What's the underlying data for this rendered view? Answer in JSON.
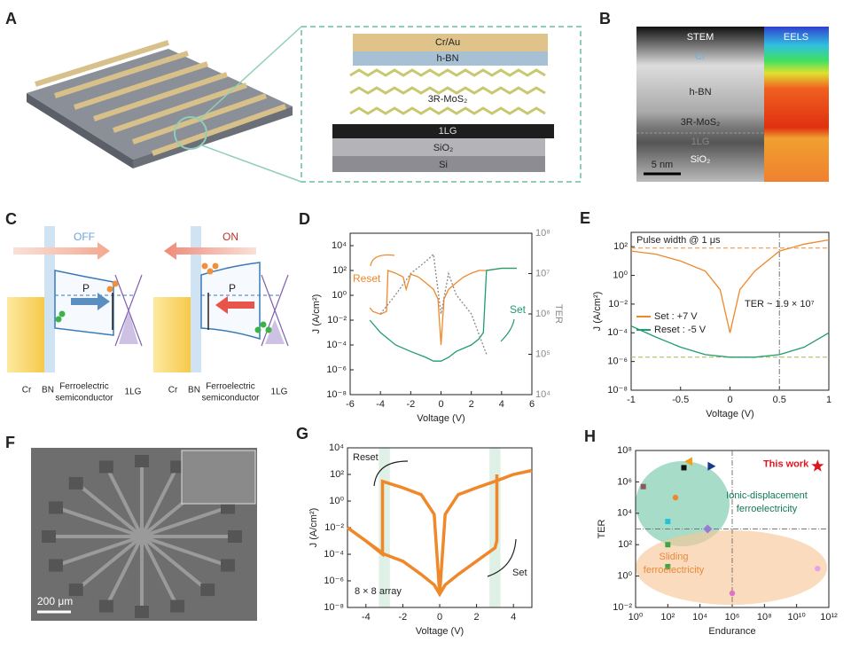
{
  "panel_a": {
    "label": "A",
    "layers": [
      "Cr/Au",
      "h-BN",
      "3R-MoS₂",
      "1LG",
      "SiO₂",
      "Si"
    ]
  },
  "panel_b": {
    "label": "B",
    "stem": "STEM",
    "eels": "EELS",
    "layers": [
      "Cr",
      "h-BN",
      "3R-MoS₂",
      "1LG",
      "SiO₂"
    ],
    "scale_bar": "5 nm"
  },
  "panel_c": {
    "label": "C",
    "diagrams": [
      {
        "state": "OFF",
        "polarization": "P",
        "layers": [
          "Cr",
          "BN",
          "Ferroelectric",
          "semiconductor",
          "1LG"
        ]
      },
      {
        "state": "ON",
        "polarization": "P",
        "layers": [
          "Cr",
          "BN",
          "Ferroelectric",
          "semiconductor",
          "1LG"
        ]
      }
    ]
  },
  "panel_f": {
    "label": "F",
    "scale_bar": "200 μm"
  },
  "chart_data": [
    {
      "type": "line",
      "label": "D",
      "x_label": "Voltage (V)",
      "y_label": "J (A/cm²)",
      "y2_label": "TER",
      "xlim": [
        -6,
        6
      ],
      "xticks": [
        -6,
        -4,
        -2,
        0,
        2,
        4,
        6
      ],
      "ylog": true,
      "ylim": [
        1e-08,
        100000.0
      ],
      "yticks": [
        {
          "value": 1e-08,
          "label": "10⁻⁸"
        },
        {
          "value": 1e-06,
          "label": "10⁻⁶"
        },
        {
          "value": 0.0001,
          "label": "10⁻⁴"
        },
        {
          "value": 0.01,
          "label": "10⁻²"
        },
        {
          "value": 1,
          "label": "10⁰"
        },
        {
          "value": 100,
          "label": "10²"
        },
        {
          "value": 10000,
          "label": "10⁴"
        }
      ],
      "y2log": true,
      "y2lim": [
        10000,
        100000000
      ],
      "y2ticks": [
        {
          "value": 10000,
          "label": "10⁴"
        },
        {
          "value": 100000,
          "label": "10⁵"
        },
        {
          "value": 1000000,
          "label": "10⁶"
        },
        {
          "value": 10000000,
          "label": "10⁷"
        },
        {
          "value": 100000000,
          "label": "10⁸"
        }
      ],
      "legend": "labels",
      "series": [
        {
          "name": "Reset",
          "color": "#f0882a",
          "x": [
            -4.7,
            -4.5,
            -4,
            -3.6,
            -3.5,
            -3,
            -2.5,
            -2.3,
            -2,
            -1.5,
            -1,
            -0.5,
            -0.2,
            0,
            0.2,
            0.5,
            1,
            1.5,
            2,
            2.5,
            3,
            4,
            5
          ],
          "values": [
            0.1,
            0.05,
            0.03,
            0.05,
            100,
            60,
            30,
            3,
            50,
            30,
            10,
            3,
            0.5,
            0.0001,
            0.5,
            3,
            10,
            30,
            60,
            100,
            100,
            150,
            150
          ]
        },
        {
          "name": "Set",
          "color": "#1f9d6e",
          "x": [
            -4.7,
            -4,
            -3,
            -2,
            -1,
            -0.5,
            0,
            0.5,
            1,
            2,
            2.5,
            2.8,
            3,
            4,
            5
          ],
          "values": [
            0.01,
            0.001,
            0.0001,
            3e-05,
            1e-05,
            5e-06,
            5e-06,
            1e-05,
            3e-05,
            0.0001,
            0.0003,
            0.001,
            100,
            150,
            150
          ]
        },
        {
          "color": "#888888",
          "axis": "y2",
          "style": "dotted",
          "x": [
            -4,
            -3,
            -2,
            -1,
            -0.5,
            0,
            0.5,
            1,
            2,
            3
          ],
          "values": [
            1000000,
            3000000,
            10000000,
            20000000,
            30000000,
            1000000,
            10000000,
            3000000,
            1000000,
            100000
          ]
        }
      ]
    },
    {
      "type": "line",
      "label": "E",
      "x_label": "Voltage (V)",
      "y_label": "J (A/cm²)",
      "xlim": [
        -1,
        1
      ],
      "xticks": [
        -1,
        -0.5,
        0,
        0.5,
        1
      ],
      "ylog": true,
      "ylim": [
        1e-08,
        1000
      ],
      "yticks": [
        {
          "value": 1e-08,
          "label": "10⁻⁸"
        },
        {
          "value": 1e-06,
          "label": "10⁻⁶"
        },
        {
          "value": 0.0001,
          "label": "10⁻⁴"
        },
        {
          "value": 0.01,
          "label": "10⁻²"
        },
        {
          "value": 1,
          "label": "10⁰"
        },
        {
          "value": 100,
          "label": "10²"
        }
      ],
      "legend": "center left",
      "annotations": [
        "Pulse width @ 1 μs",
        "TER ~ 1.9 × 10⁷"
      ],
      "vlines": [
        0.5
      ],
      "hlines": [
        80,
        2e-06
      ],
      "hline_colors": [
        "#f0882a",
        "#a8b84a"
      ],
      "series": [
        {
          "name": "Set : +7 V",
          "color": "#f0882a",
          "x": [
            -1,
            -0.75,
            -0.5,
            -0.25,
            -0.1,
            0,
            0.1,
            0.25,
            0.5,
            0.75,
            1
          ],
          "values": [
            50,
            30,
            10,
            2,
            0.1,
            0.0001,
            0.1,
            2,
            50,
            150,
            300
          ]
        },
        {
          "name": "Reset : -5 V",
          "color": "#1f9d6e",
          "x": [
            -1,
            -0.75,
            -0.5,
            -0.25,
            0,
            0.25,
            0.5,
            0.75,
            1
          ],
          "values": [
            0.0003,
            5e-05,
            1e-05,
            3e-06,
            2e-06,
            2e-06,
            3e-06,
            1e-05,
            0.0001
          ]
        }
      ]
    },
    {
      "type": "line",
      "label": "G",
      "x_label": "Voltage (V)",
      "y_label": "J (A/cm²)",
      "xlim": [
        -5,
        5
      ],
      "xticks": [
        -4,
        -2,
        0,
        2,
        4
      ],
      "ylog": true,
      "ylim": [
        1e-08,
        10000
      ],
      "yticks": [
        {
          "value": 1e-08,
          "label": "10⁻⁸"
        },
        {
          "value": 1e-06,
          "label": "10⁻⁶"
        },
        {
          "value": 0.0001,
          "label": "10⁻⁴"
        },
        {
          "value": 0.01,
          "label": "10⁻²"
        },
        {
          "value": 1,
          "label": "10⁰"
        },
        {
          "value": 100,
          "label": "10²"
        },
        {
          "value": 10000,
          "label": "10⁴"
        }
      ],
      "annotations": [
        "Reset",
        "Set",
        "8 × 8 array"
      ],
      "xbands": [
        [
          -3.3,
          -2.7
        ],
        [
          2.7,
          3.3
        ]
      ],
      "series": [
        {
          "color": "#f0882a",
          "x": [
            -5,
            -4,
            -3.1,
            -3.1,
            -2,
            -1,
            -0.3,
            0,
            0.3,
            1,
            2,
            3,
            4,
            5
          ],
          "values": [
            0.01,
            0.001,
            0.0001,
            30,
            10,
            3,
            0.1,
            1e-07,
            0.1,
            3,
            10,
            30,
            100,
            200
          ]
        },
        {
          "color": "#f0882a",
          "x": [
            -5,
            -4,
            -3,
            -2,
            -1,
            -0.3,
            0,
            0.3,
            1,
            2,
            3,
            3.1,
            3.1
          ],
          "values": [
            0.01,
            0.001,
            0.0001,
            3e-05,
            3e-06,
            5e-07,
            1e-07,
            5e-07,
            3e-06,
            3e-05,
            0.0003,
            0.001,
            100
          ]
        }
      ]
    },
    {
      "type": "scatter",
      "label": "H",
      "x_label": "Endurance",
      "y_label": "TER",
      "xlog": true,
      "xlim": [
        1,
        1000000000000
      ],
      "xticks": [
        {
          "value": 1,
          "label": "10⁰"
        },
        {
          "value": 100,
          "label": "10²"
        },
        {
          "value": 10000,
          "label": "10⁴"
        },
        {
          "value": 1000000,
          "label": "10⁶"
        },
        {
          "value": 100000000,
          "label": "10⁸"
        },
        {
          "value": 10000000000,
          "label": "10¹⁰"
        },
        {
          "value": 1000000000000,
          "label": "10¹²"
        }
      ],
      "ylog": true,
      "ylim": [
        0.01,
        100000000
      ],
      "yticks": [
        {
          "value": 0.01,
          "label": "10⁻²"
        },
        {
          "value": 1,
          "label": "10⁰"
        },
        {
          "value": 100,
          "label": "10²"
        },
        {
          "value": 10000,
          "label": "10⁴"
        },
        {
          "value": 1000000,
          "label": "10⁶"
        },
        {
          "value": 100000000,
          "label": "10⁸"
        }
      ],
      "annotations": [
        "Ionic-displacement",
        "ferroelectricity",
        "Sliding",
        "ferroelectricity"
      ],
      "vlines": [
        1000000
      ],
      "hlines": [
        1000
      ],
      "series": [
        {
          "x": [
            3,
            300,
            100,
            1000,
            2000,
            50000,
            30000,
            100,
            100,
            1000000,
            200000000000
          ],
          "values": [
            500000,
            100000,
            3000,
            8000000,
            20000000,
            10000000,
            1000,
            100,
            4,
            0.08,
            3
          ],
          "colors": [
            "#8b5a5a",
            "#f0882a",
            "#22c5d6",
            "#111111",
            "#f0a020",
            "#1a3a8a",
            "#9a7ad0",
            "#3aa84a",
            "#3aa84a",
            "#e070c8",
            "#e8a0e8"
          ],
          "markers": [
            "square",
            "circle",
            "square",
            "square",
            "triangle-left",
            "triangle-right",
            "diamond",
            "square",
            "square",
            "circle",
            "circle"
          ]
        },
        {
          "name": "This work",
          "color": "#e0141e",
          "marker": "star",
          "x": [
            200000000000
          ],
          "values": [
            10000000
          ]
        }
      ]
    }
  ]
}
